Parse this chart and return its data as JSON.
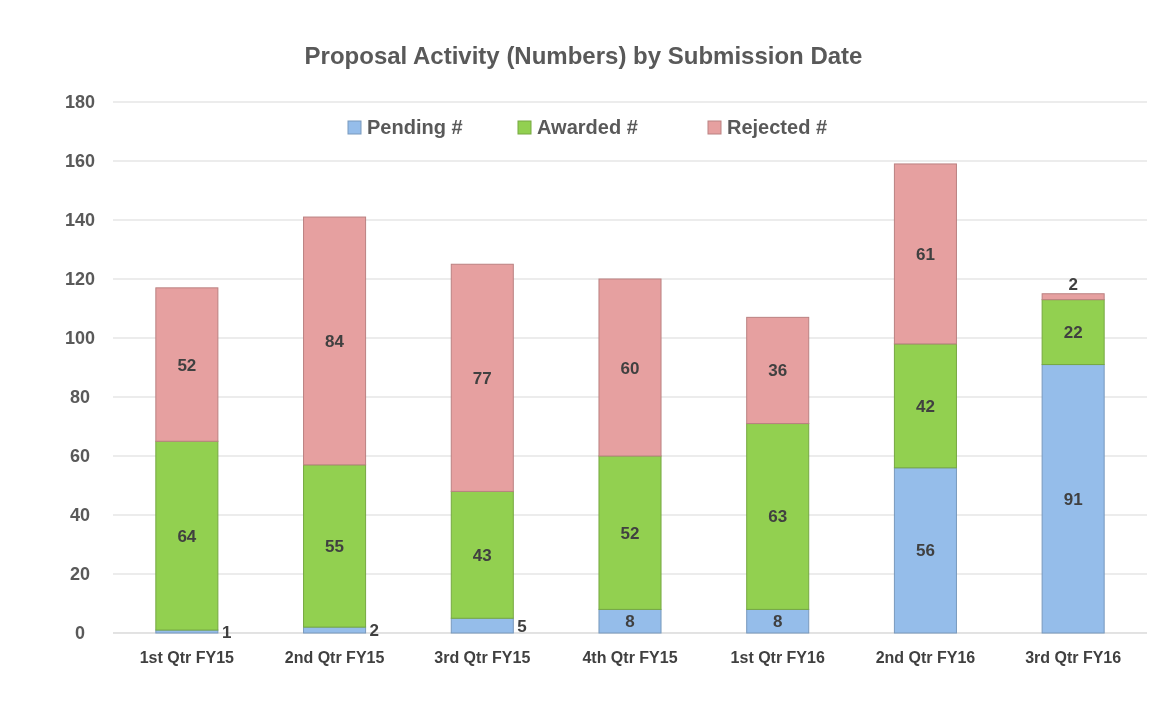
{
  "chart_data": {
    "type": "bar",
    "title": "Proposal Activity (Numbers) by Submission Date",
    "categories": [
      "1st Qtr FY15",
      "2nd Qtr FY15",
      "3rd Qtr FY15",
      "4th Qtr FY15",
      "1st Qtr FY16",
      "2nd Qtr FY16",
      "3rd Qtr FY16"
    ],
    "series": [
      {
        "name": "Pending #",
        "color": "#95bdea",
        "values": [
          1,
          2,
          5,
          8,
          8,
          56,
          91
        ]
      },
      {
        "name": "Awarded #",
        "color": "#92d050",
        "values": [
          64,
          55,
          43,
          52,
          63,
          42,
          22
        ]
      },
      {
        "name": "Rejected #",
        "color": "#e6a0a0",
        "values": [
          52,
          84,
          77,
          60,
          36,
          61,
          2
        ]
      }
    ],
    "stacked": true,
    "ylim": [
      0,
      180
    ],
    "yticks": [
      0,
      20,
      40,
      60,
      80,
      100,
      120,
      140,
      160,
      180
    ],
    "grid": "y",
    "legend": "top",
    "data_labels": true
  }
}
